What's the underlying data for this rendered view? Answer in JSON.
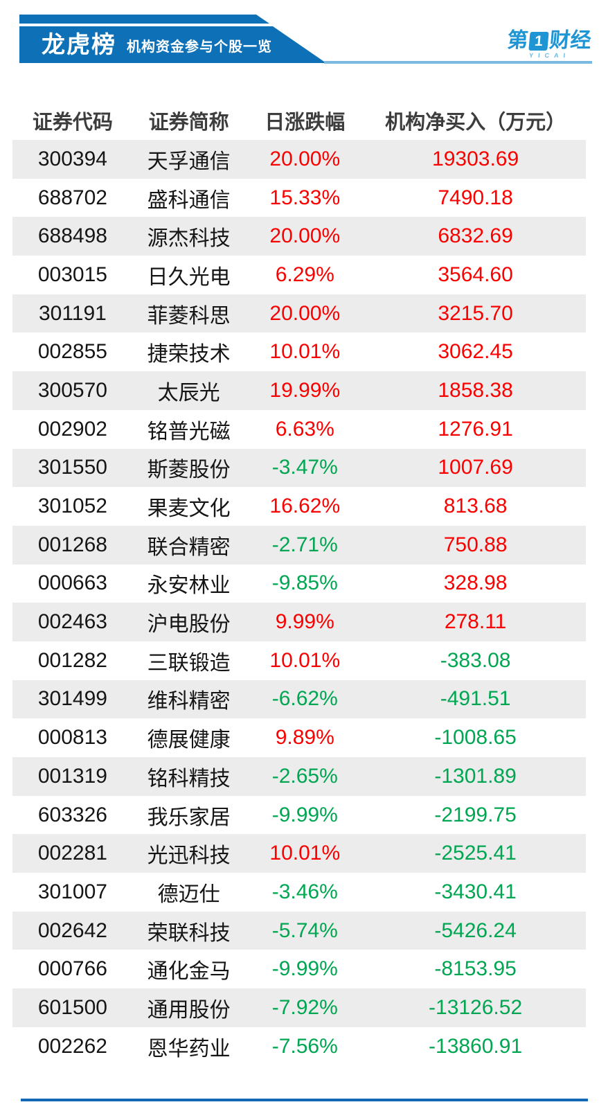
{
  "chart_data": {
    "type": "table",
    "title": "龙虎榜",
    "subtitle": "机构资金参与个股一览",
    "columns": [
      "证券代码",
      "证券简称",
      "日涨跌幅",
      "机构净买入（万元）"
    ],
    "rows": [
      {
        "code": "300394",
        "name": "天孚通信",
        "pct": "20.00%",
        "amount": "19303.69"
      },
      {
        "code": "688702",
        "name": "盛科通信",
        "pct": "15.33%",
        "amount": "7490.18"
      },
      {
        "code": "688498",
        "name": "源杰科技",
        "pct": "20.00%",
        "amount": "6832.69"
      },
      {
        "code": "003015",
        "name": "日久光电",
        "pct": "6.29%",
        "amount": "3564.60"
      },
      {
        "code": "301191",
        "name": "菲菱科思",
        "pct": "20.00%",
        "amount": "3215.70"
      },
      {
        "code": "002855",
        "name": "捷荣技术",
        "pct": "10.01%",
        "amount": "3062.45"
      },
      {
        "code": "300570",
        "name": "太辰光",
        "pct": "19.99%",
        "amount": "1858.38"
      },
      {
        "code": "002902",
        "name": "铭普光磁",
        "pct": "6.63%",
        "amount": "1276.91"
      },
      {
        "code": "301550",
        "name": "斯菱股份",
        "pct": "-3.47%",
        "amount": "1007.69"
      },
      {
        "code": "301052",
        "name": "果麦文化",
        "pct": "16.62%",
        "amount": "813.68"
      },
      {
        "code": "001268",
        "name": "联合精密",
        "pct": "-2.71%",
        "amount": "750.88"
      },
      {
        "code": "000663",
        "name": "永安林业",
        "pct": "-9.85%",
        "amount": "328.98"
      },
      {
        "code": "002463",
        "name": "沪电股份",
        "pct": "9.99%",
        "amount": "278.11"
      },
      {
        "code": "001282",
        "name": "三联锻造",
        "pct": "10.01%",
        "amount": "-383.08"
      },
      {
        "code": "301499",
        "name": "维科精密",
        "pct": "-6.62%",
        "amount": "-491.51"
      },
      {
        "code": "000813",
        "name": "德展健康",
        "pct": "9.89%",
        "amount": "-1008.65"
      },
      {
        "code": "001319",
        "name": "铭科精技",
        "pct": "-2.65%",
        "amount": "-1301.89"
      },
      {
        "code": "603326",
        "name": "我乐家居",
        "pct": "-9.99%",
        "amount": "-2199.75"
      },
      {
        "code": "002281",
        "name": "光迅科技",
        "pct": "10.01%",
        "amount": "-2525.41"
      },
      {
        "code": "301007",
        "name": "德迈仕",
        "pct": "-3.46%",
        "amount": "-3430.41"
      },
      {
        "code": "002642",
        "name": "荣联科技",
        "pct": "-5.74%",
        "amount": "-5426.24"
      },
      {
        "code": "000766",
        "name": "通化金马",
        "pct": "-9.99%",
        "amount": "-8153.95"
      },
      {
        "code": "601500",
        "name": "通用股份",
        "pct": "-7.92%",
        "amount": "-13126.52"
      },
      {
        "code": "002262",
        "name": "恩华药业",
        "pct": "-7.56%",
        "amount": "-13860.91"
      }
    ]
  },
  "logo": {
    "prefix": "第",
    "numeral": "1",
    "suffix": "财经",
    "caption": "YICAI"
  },
  "colors": {
    "banner_blue": "#0e71b8",
    "logo_blue": "#2095d3",
    "logo_caption_blue": "#6ab8e4",
    "up_red": "#fb0000",
    "down_green": "#00a651",
    "row_alt_gray": "#ececec",
    "underline_light_blue": "#7cb9de",
    "bottom_rule_blue": "#1266b4",
    "header_text": "#3d3d3d",
    "body_text": "#151515"
  }
}
